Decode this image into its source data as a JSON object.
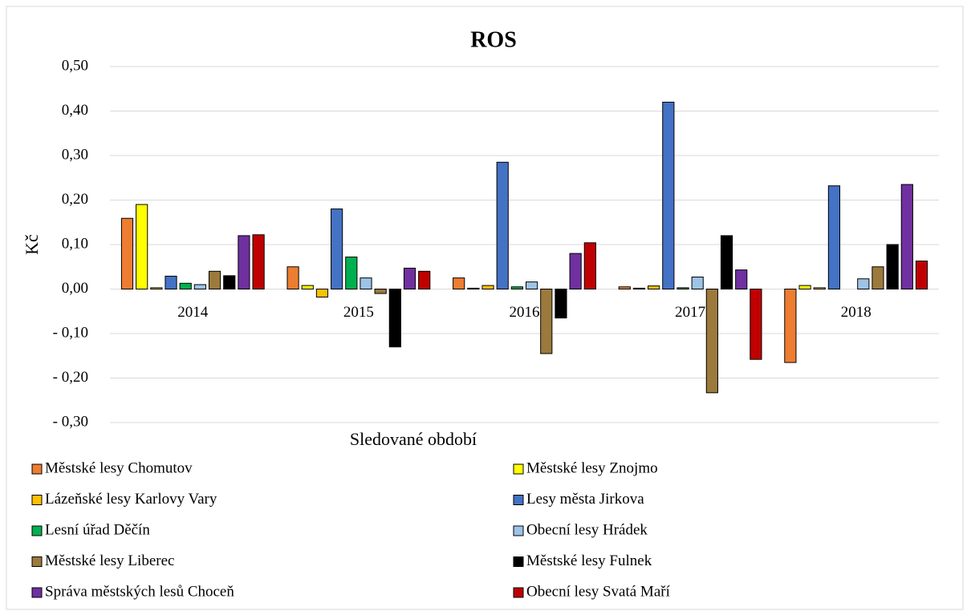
{
  "chart_data": {
    "type": "bar",
    "title": "ROS",
    "y_label": "Kč",
    "x_label": "Sledované období",
    "categories": [
      "2014",
      "2015",
      "2016",
      "2017",
      "2018"
    ],
    "series": [
      {
        "name": "Městské lesy Chomutov",
        "color": "#ed7d31",
        "values": [
          0.159,
          0.05,
          0.025,
          0.005,
          -0.165
        ]
      },
      {
        "name": "Městské lesy Znojmo",
        "color": "#ffff00",
        "values": [
          0.19,
          0.008,
          0.002,
          0.002,
          0.008
        ]
      },
      {
        "name": "Lázeňské lesy Karlovy Vary",
        "color": "#ffc000",
        "values": [
          0.003,
          -0.018,
          0.008,
          0.007,
          0.003
        ]
      },
      {
        "name": "Lesy města Jirkova",
        "color": "#4472c4",
        "values": [
          0.029,
          0.18,
          0.285,
          0.42,
          0.232
        ]
      },
      {
        "name": "Lesní úřad Děčín",
        "color": "#00b050",
        "values": [
          0.013,
          0.072,
          0.005,
          0.003,
          0.0
        ]
      },
      {
        "name": "Obecní lesy Hrádek",
        "color": "#9dc3e6",
        "values": [
          0.01,
          0.025,
          0.016,
          0.027,
          0.023
        ]
      },
      {
        "name": "Městské lesy Liberec",
        "color": "#9c7a3c",
        "values": [
          0.04,
          -0.01,
          -0.145,
          -0.233,
          0.05
        ]
      },
      {
        "name": "Městské lesy Fulnek",
        "color": "#000000",
        "values": [
          0.03,
          -0.13,
          -0.065,
          0.12,
          0.1
        ]
      },
      {
        "name": "Správa městských lesů Choceň",
        "color": "#7030a0",
        "values": [
          0.12,
          0.047,
          0.08,
          0.043,
          0.235
        ]
      },
      {
        "name": "Obecní lesy Svatá Maří",
        "color": "#c00000",
        "values": [
          0.122,
          0.04,
          0.104,
          -0.158,
          0.063
        ]
      }
    ],
    "ylim": [
      -0.3,
      0.5
    ],
    "yticks": [
      {
        "value": 0.5,
        "label": "0,50"
      },
      {
        "value": 0.4,
        "label": "0,40"
      },
      {
        "value": 0.3,
        "label": "0,30"
      },
      {
        "value": 0.2,
        "label": "0,20"
      },
      {
        "value": 0.1,
        "label": "0,10"
      },
      {
        "value": 0.0,
        "label": "0,00"
      },
      {
        "value": -0.1,
        "label": "- 0,10"
      },
      {
        "value": -0.2,
        "label": "- 0,20"
      },
      {
        "value": -0.3,
        "label": "- 0,30"
      }
    ],
    "grid": true,
    "legend": "bottom"
  }
}
